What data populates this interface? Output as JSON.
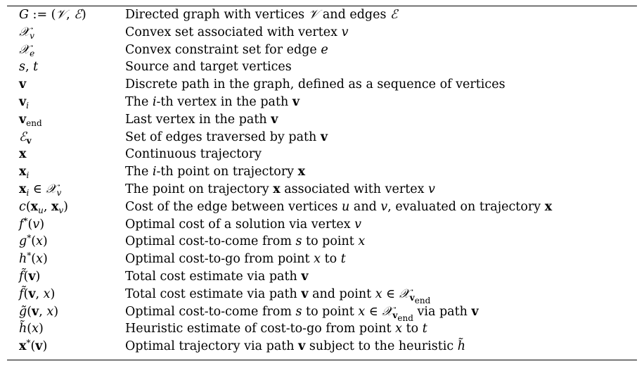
{
  "rows": [
    {
      "symbol": "<i>G</i> := (<span class=\"cal\">𝒱</span>, <span class=\"cal\">ℰ</span>)",
      "desc": "Directed graph with vertices <span class=\"cal\">𝒱</span> and edges <span class=\"cal\">ℰ</span>"
    },
    {
      "symbol": "<span class=\"cal\">𝒳</span><sub><i>v</i></sub>",
      "desc": "Convex set associated with vertex <i>v</i>"
    },
    {
      "symbol": "<span class=\"cal\">𝒳</span><sub><i>e</i></sub>",
      "desc": "Convex constraint set for edge <i>e</i>"
    },
    {
      "symbol": "<i>s</i>, <i>t</i>",
      "desc": "Source and target vertices"
    },
    {
      "symbol": "<b>v</b>",
      "desc": "Discrete path in the graph, defined as a sequence of vertices"
    },
    {
      "symbol": "<b>v</b><sub><i>i</i></sub>",
      "desc": "The <i>i</i>-th vertex in the path <b>v</b>"
    },
    {
      "symbol": "<b>v</b><sub>end</sub>",
      "desc": "Last vertex in the path <b>v</b>"
    },
    {
      "symbol": "<span class=\"cal\">ℰ</span><sub><b>v</b></sub>",
      "desc": "Set of edges traversed by path <b>v</b>"
    },
    {
      "symbol": "<b>x</b>",
      "desc": "Continuous trajectory"
    },
    {
      "symbol": "<b>x</b><sub><i>i</i></sub>",
      "desc": "The <i>i</i>-th point on trajectory <b>x</b>"
    },
    {
      "symbol": "<b>x</b><sub><i>i</i></sub> ∈ <span class=\"cal\">𝒳</span><sub><i>v</i></sub>",
      "desc": "The point on trajectory <b>x</b> associated with vertex <i>v</i>"
    },
    {
      "symbol": "<i>c</i>(<b>x</b><sub><i>u</i></sub>, <b>x</b><sub><i>v</i></sub>)",
      "desc": "Cost of the edge between vertices <i>u</i> and <i>v</i>, evaluated on trajectory <b>x</b>"
    },
    {
      "symbol": "<i>f</i><sup>*</sup>(<i>v</i>)",
      "desc": "Optimal cost of a solution via vertex <i>v</i>"
    },
    {
      "symbol": "<i>g</i><sup>*</sup>(<i>x</i>)",
      "desc": "Optimal cost-to-come from <i>s</i> to point <i>x</i>"
    },
    {
      "symbol": "<i>h</i><sup>*</sup>(<i>x</i>)",
      "desc": "Optimal cost-to-go from point <i>x</i> to <i>t</i>"
    },
    {
      "symbol": "<i>f̃</i>(<b>v</b>)",
      "desc": "Total cost estimate via path <b>v</b>"
    },
    {
      "symbol": "<i>f̃</i>(<b>v</b>, <i>x</i>)",
      "desc": "Total cost estimate via path <b>v</b> and point <i>x</i> ∈ <span class=\"cal\">𝒳</span><sub><b>v</b><sub>end</sub></sub>"
    },
    {
      "symbol": "<i>g̃</i>(<b>v</b>, <i>x</i>)",
      "desc": "Optimal cost-to-come from <i>s</i> to point <i>x</i> ∈ <span class=\"cal\">𝒳</span><sub><b>v</b><sub>end</sub></sub> via path <b>v</b>"
    },
    {
      "symbol": "<i>h̃</i>(<i>x</i>)",
      "desc": "Heuristic estimate of cost-to-go from point <i>x</i> to <i>t</i>"
    },
    {
      "symbol": "<b>x</b><sup>*</sup>(<b>v</b>)",
      "desc": "Optimal trajectory via path <b>v</b> subject to the heuristic <i>h̃</i>"
    }
  ]
}
